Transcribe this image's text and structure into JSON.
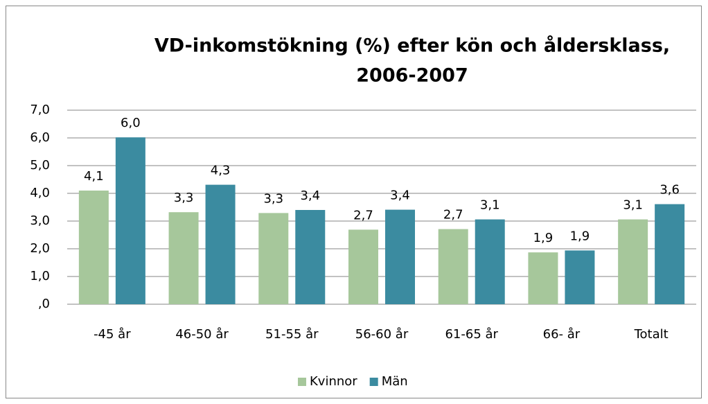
{
  "chart_data": {
    "type": "bar",
    "title": "VD-inkomstökning (%) efter kön och åldersklass, 2006-2007",
    "title_lines": [
      "VD-inkomstökning (%) efter kön och åldersklass,",
      "2006-2007"
    ],
    "categories": [
      "-45 år",
      "46-50 år",
      "51-55 år",
      "56-60 år",
      "61-65 år",
      "66- år",
      "Totalt"
    ],
    "series": [
      {
        "name": "Kvinnor",
        "color": "#a6c79b",
        "values": [
          4.1,
          3.32,
          3.29,
          2.69,
          2.71,
          1.87,
          3.06
        ],
        "value_labels": [
          "4,1",
          "3,3",
          "3,3",
          "2,7",
          "2,7",
          "1,9",
          "3,1"
        ]
      },
      {
        "name": "Män",
        "color": "#3b8ba0",
        "values": [
          6.02,
          4.31,
          3.4,
          3.41,
          3.06,
          1.94,
          3.61
        ],
        "value_labels": [
          "6,0",
          "4,3",
          "3,4",
          "3,4",
          "3,1",
          "1,9",
          "3,6"
        ]
      }
    ],
    "ylim": [
      0,
      7
    ],
    "yticks": [
      {
        "value": 0,
        "label": ",0"
      },
      {
        "value": 1,
        "label": "1,0"
      },
      {
        "value": 2,
        "label": "2,0"
      },
      {
        "value": 3,
        "label": "3,0"
      },
      {
        "value": 4,
        "label": "4,0"
      },
      {
        "value": 5,
        "label": "5,0"
      },
      {
        "value": 6,
        "label": "6,0"
      },
      {
        "value": 7,
        "label": "7,0"
      }
    ],
    "grid": true,
    "legend": "bottom"
  }
}
